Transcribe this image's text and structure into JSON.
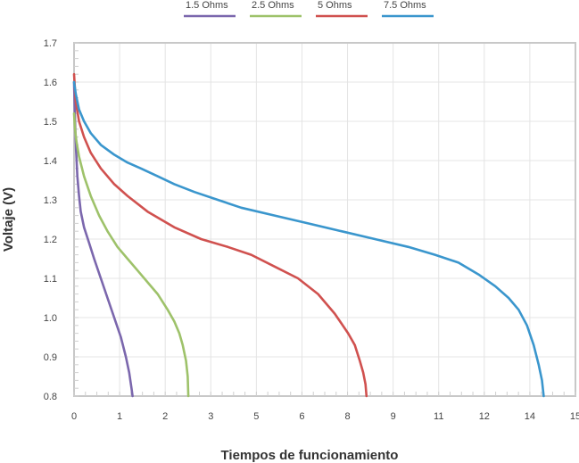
{
  "chart_data": {
    "type": "line",
    "title": "",
    "xlabel": "Tiempos de funcionamiento",
    "ylabel": "Voltaje (V)",
    "x_ticks": [
      "0",
      "1",
      "2",
      "3",
      "5",
      "6",
      "8",
      "9",
      "11",
      "12",
      "14",
      "15"
    ],
    "y_ticks": [
      "0.8",
      "0.9",
      "1.0",
      "1.1",
      "1.2",
      "1.3",
      "1.4",
      "1.5",
      "1.6",
      "1.7"
    ],
    "xlim": [
      0,
      15
    ],
    "ylim": [
      0.8,
      1.7
    ],
    "grid": true,
    "legend_position": "top",
    "series": [
      {
        "name": "1.5 Ohms",
        "color": "#7b67ad",
        "x": [
          0.0,
          0.03,
          0.06,
          0.1,
          0.15,
          0.2,
          0.3,
          0.45,
          0.6,
          0.8,
          1.0,
          1.2,
          1.4,
          1.55,
          1.65,
          1.72,
          1.75
        ],
        "y": [
          1.6,
          1.5,
          1.43,
          1.36,
          1.31,
          1.27,
          1.23,
          1.19,
          1.15,
          1.1,
          1.05,
          1.0,
          0.95,
          0.9,
          0.86,
          0.82,
          0.8
        ]
      },
      {
        "name": "2.5 Ohms",
        "color": "#9ec26a",
        "x": [
          0.0,
          0.03,
          0.07,
          0.15,
          0.3,
          0.5,
          0.75,
          1.0,
          1.3,
          1.6,
          1.9,
          2.2,
          2.5,
          2.8,
          3.0,
          3.15,
          3.25,
          3.35,
          3.4,
          3.42
        ],
        "y": [
          1.52,
          1.48,
          1.45,
          1.41,
          1.36,
          1.31,
          1.26,
          1.22,
          1.18,
          1.15,
          1.12,
          1.09,
          1.06,
          1.02,
          0.99,
          0.96,
          0.93,
          0.89,
          0.85,
          0.8
        ]
      },
      {
        "name": "5 Ohms",
        "color": "#d0514f",
        "x": [
          0.0,
          0.05,
          0.15,
          0.3,
          0.5,
          0.8,
          1.2,
          1.6,
          2.2,
          3.0,
          3.8,
          4.6,
          5.3,
          6.0,
          6.7,
          7.3,
          7.8,
          8.2,
          8.4,
          8.55,
          8.65,
          8.72,
          8.75
        ],
        "y": [
          1.62,
          1.55,
          1.5,
          1.46,
          1.42,
          1.38,
          1.34,
          1.31,
          1.27,
          1.23,
          1.2,
          1.18,
          1.16,
          1.13,
          1.1,
          1.06,
          1.01,
          0.96,
          0.93,
          0.89,
          0.86,
          0.83,
          0.8
        ]
      },
      {
        "name": "7.5 Ohms",
        "color": "#3a96cd",
        "x": [
          0.0,
          0.05,
          0.15,
          0.3,
          0.5,
          0.8,
          1.2,
          1.6,
          2.0,
          2.5,
          3.0,
          3.6,
          4.3,
          5.0,
          6.0,
          7.0,
          8.0,
          9.0,
          10.0,
          10.8,
          11.5,
          12.1,
          12.6,
          13.0,
          13.3,
          13.55,
          13.75,
          13.9,
          14.0,
          14.05
        ],
        "y": [
          1.6,
          1.57,
          1.53,
          1.5,
          1.47,
          1.44,
          1.415,
          1.395,
          1.38,
          1.36,
          1.34,
          1.32,
          1.3,
          1.28,
          1.26,
          1.24,
          1.22,
          1.2,
          1.18,
          1.16,
          1.14,
          1.11,
          1.08,
          1.05,
          1.02,
          0.98,
          0.93,
          0.88,
          0.84,
          0.8
        ]
      }
    ]
  }
}
